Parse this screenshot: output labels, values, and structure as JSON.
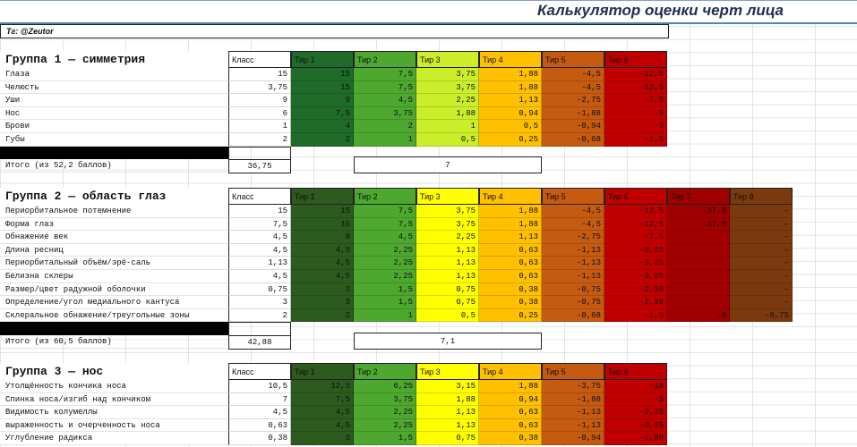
{
  "title": "Калькулятор оценки черт лица",
  "contact": "Тг: @Zeutor",
  "groups": [
    {
      "title": "Группа 1 — симметрия",
      "class_header": "Класс",
      "tiers": [
        "Тир 1",
        "Тир 2",
        "Тир 3",
        "Тир 4",
        "Тир 5",
        "Тир 6"
      ],
      "rows": [
        {
          "label": "Глаза",
          "class": "15",
          "tiers": [
            "15",
            "7,5",
            "3,75",
            "1,88",
            "-4,5",
            "-12,5"
          ]
        },
        {
          "label": "Челюсть",
          "class": "3,75",
          "tiers": [
            "15",
            "7,5",
            "3,75",
            "1,88",
            "-4,5",
            "-12,5"
          ]
        },
        {
          "label": "Уши",
          "class": "9",
          "tiers": [
            "9",
            "4,5",
            "2,25",
            "1,13",
            "-2,75",
            "-7,5"
          ]
        },
        {
          "label": "Нос",
          "class": "6",
          "tiers": [
            "7,5",
            "3,75",
            "1,88",
            "0,94",
            "-1,88",
            "-5"
          ]
        },
        {
          "label": "Брови",
          "class": "1",
          "tiers": [
            "4",
            "2",
            "1",
            "0,5",
            "-0,94",
            "-3"
          ]
        },
        {
          "label": "Губы",
          "class": "2",
          "tiers": [
            "2",
            "1",
            "0,5",
            "0,25",
            "-0,68",
            "-1,5"
          ]
        }
      ],
      "total": {
        "label": "Итого (из 52,2 баллов)",
        "class": "36,75",
        "tier": "7"
      }
    },
    {
      "title": "Группа 2 — область глаз",
      "class_header": "Класс",
      "tiers": [
        "Тир 1",
        "Тир 2",
        "Тир 3",
        "Тир 4",
        "Тир 5",
        "Тир 6",
        "Тир 7",
        "Тир 8"
      ],
      "rows": [
        {
          "label": "Периорбитальное потемнение",
          "class": "15",
          "tiers": [
            "15",
            "7,5",
            "3,75",
            "1,88",
            "-4,5",
            "-12,5",
            "-37,5",
            "–"
          ]
        },
        {
          "label": "Форма глаз",
          "class": "7,5",
          "tiers": [
            "15",
            "7,5",
            "3,75",
            "1,88",
            "-4,5",
            "-12,5",
            "-37,5",
            "–"
          ]
        },
        {
          "label": "Обнажение век",
          "class": "4,5",
          "tiers": [
            "9",
            "4,5",
            "2,25",
            "1,13",
            "-2,75",
            "-7,5",
            null,
            "–"
          ]
        },
        {
          "label": "Длина ресниц",
          "class": "4,5",
          "tiers": [
            "4,5",
            "2,25",
            "1,13",
            "0,63",
            "-1,13",
            "-3,25",
            null,
            "–"
          ]
        },
        {
          "label": "Периорбитальный объём/эрё-саль",
          "class": "1,13",
          "tiers": [
            "4,5",
            "2,25",
            "1,13",
            "0,63",
            "-1,13",
            "-3,25",
            null,
            "–"
          ]
        },
        {
          "label": "Белизна склеры",
          "class": "4,5",
          "tiers": [
            "4,5",
            "2,25",
            "1,13",
            "0,63",
            "-1,13",
            "-3,25",
            null,
            "–"
          ]
        },
        {
          "label": "Размер/цвет радужной оболочки",
          "class": "0,75",
          "tiers": [
            "3",
            "1,5",
            "0,75",
            "0,38",
            "-0,75",
            "-2,38",
            null,
            "–"
          ]
        },
        {
          "label": "Определение/угол медиального кантуса",
          "class": "3",
          "tiers": [
            "3",
            "1,5",
            "0,75",
            "0,38",
            "-0,75",
            "-2,38",
            null,
            "–"
          ]
        },
        {
          "label": "Склеральное обнажение/треугольные зоны",
          "class": "2",
          "tiers": [
            "2",
            "1",
            "0,5",
            "0,25",
            "-0,68",
            "-1,5",
            "-5",
            "-8,75"
          ]
        }
      ],
      "total": {
        "label": "Итого (из 60,5 баллов)",
        "class": "42,88",
        "tier": "7,1"
      }
    },
    {
      "title": "Группа 3 — нос",
      "class_header": "Класс",
      "tiers": [
        "Тир 1",
        "Тир 2",
        "Тир 3",
        "Тир 4",
        "Тир 5",
        "Тир 6"
      ],
      "rows": [
        {
          "label": "Утолщённость кончика носа",
          "class": "10,5",
          "tiers": [
            "12,5",
            "6,25",
            "3,15",
            "1,88",
            "-3,75",
            "-10"
          ]
        },
        {
          "label": "Спинка носа/изгиб над кончиком",
          "class": "7",
          "tiers": [
            "7,5",
            "3,75",
            "1,88",
            "0,94",
            "-1,88",
            "-5"
          ]
        },
        {
          "label": "Видимость колумеллы",
          "class": "4,5",
          "tiers": [
            "4,5",
            "2,25",
            "1,13",
            "0,63",
            "-1,13",
            "-3,25"
          ]
        },
        {
          "label": "выраженность и очерченность носа",
          "class": "0,63",
          "tiers": [
            "4,5",
            "2,25",
            "1,13",
            "0,63",
            "-1,13",
            "-3,25"
          ]
        },
        {
          "label": "Углубление радикса",
          "class": "0,38",
          "tiers": [
            "3",
            "1,5",
            "0,75",
            "0,38",
            "-0,94",
            "-1,88"
          ]
        }
      ]
    }
  ]
}
